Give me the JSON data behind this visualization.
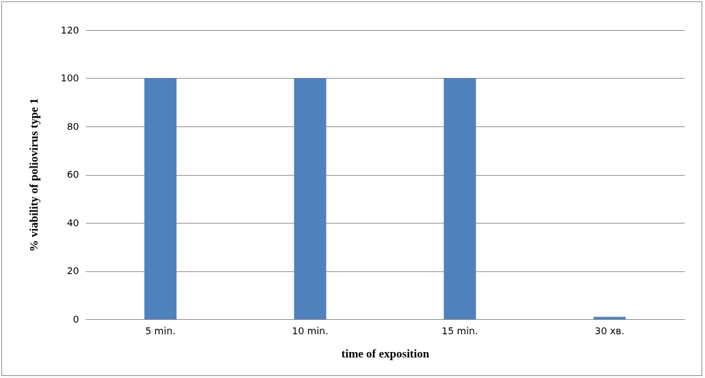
{
  "chart_data": {
    "type": "bar",
    "xlabel": "time of exposition",
    "ylabel": "% viability  of poliovirus  type 1",
    "categories": [
      "5 min.",
      "10 min.",
      "15 min.",
      "30 хв."
    ],
    "series": [
      {
        "color": "#4f81bd",
        "values": [
          100,
          100,
          100,
          1
        ]
      }
    ],
    "ylim": [
      0,
      120
    ],
    "yticks": [
      0,
      20,
      40,
      60,
      80,
      100,
      120
    ],
    "grid": "y",
    "legend": false
  }
}
